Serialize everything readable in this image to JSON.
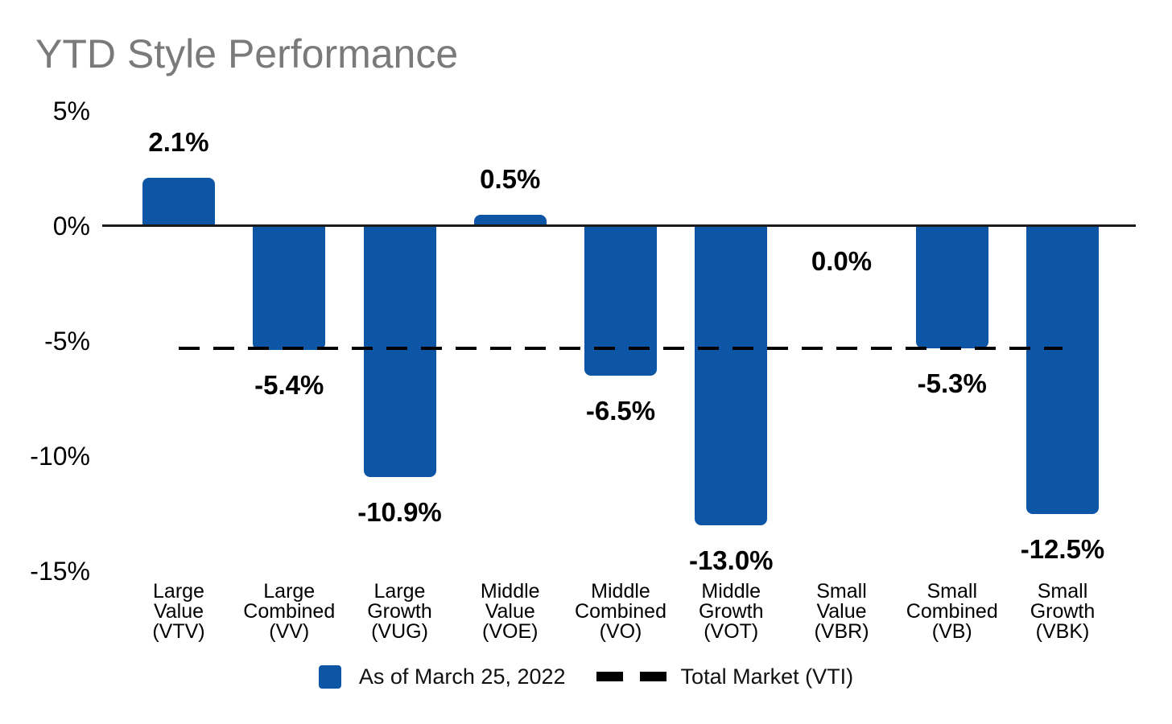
{
  "title": "YTD Style Performance",
  "chart_data": {
    "type": "bar",
    "title": "YTD Style Performance",
    "categories": [
      "Large Value (VTV)",
      "Large Combined (VV)",
      "Large Growth (VUG)",
      "Middle Value (VOE)",
      "Middle Combined (VO)",
      "Middle Growth (VOT)",
      "Small Value (VBR)",
      "Small Combined (VB)",
      "Small Growth (VBK)"
    ],
    "category_label_lines": [
      [
        "Large",
        "Value",
        "(VTV)"
      ],
      [
        "Large",
        "Combined",
        "(VV)"
      ],
      [
        "Large",
        "Growth",
        "(VUG)"
      ],
      [
        "Middle",
        "Value",
        "(VOE)"
      ],
      [
        "Middle",
        "Combined",
        "(VO)"
      ],
      [
        "Middle",
        "Growth",
        "(VOT)"
      ],
      [
        "Small",
        "Value",
        "(VBR)"
      ],
      [
        "Small",
        "Combined",
        "(VB)"
      ],
      [
        "Small",
        "Growth",
        "(VBK)"
      ]
    ],
    "series": [
      {
        "name": "As of March 25, 2022",
        "values": [
          2.1,
          -5.4,
          -10.9,
          0.5,
          -6.5,
          -13.0,
          0.0,
          -5.3,
          -12.5
        ],
        "value_labels": [
          "2.1%",
          "-5.4%",
          "-10.9%",
          "0.5%",
          "-6.5%",
          "-13.0%",
          "0.0%",
          "-5.3%",
          "-12.5%"
        ]
      }
    ],
    "reference_line": {
      "name": "Total Market (VTI)",
      "value": -5.3,
      "style": "dashed"
    },
    "yticks": [
      {
        "value": 5,
        "label": "5%"
      },
      {
        "value": 0,
        "label": "0%"
      },
      {
        "value": -5,
        "label": "-5%"
      },
      {
        "value": -10,
        "label": "-10%"
      },
      {
        "value": -15,
        "label": "-15%"
      }
    ],
    "ylim": [
      -15,
      5
    ],
    "xlabel": "",
    "ylabel": "",
    "grid": false,
    "legend_position": "bottom",
    "legend": [
      {
        "marker": "square",
        "label": "As of March 25, 2022"
      },
      {
        "marker": "dashes",
        "label": "Total Market (VTI)"
      }
    ],
    "colors": {
      "bar": "#0d56a6",
      "reference_line": "#000000",
      "title_text": "#7a7a7a",
      "label_text": "#000000",
      "axis_line": "#1a1a1a"
    }
  }
}
